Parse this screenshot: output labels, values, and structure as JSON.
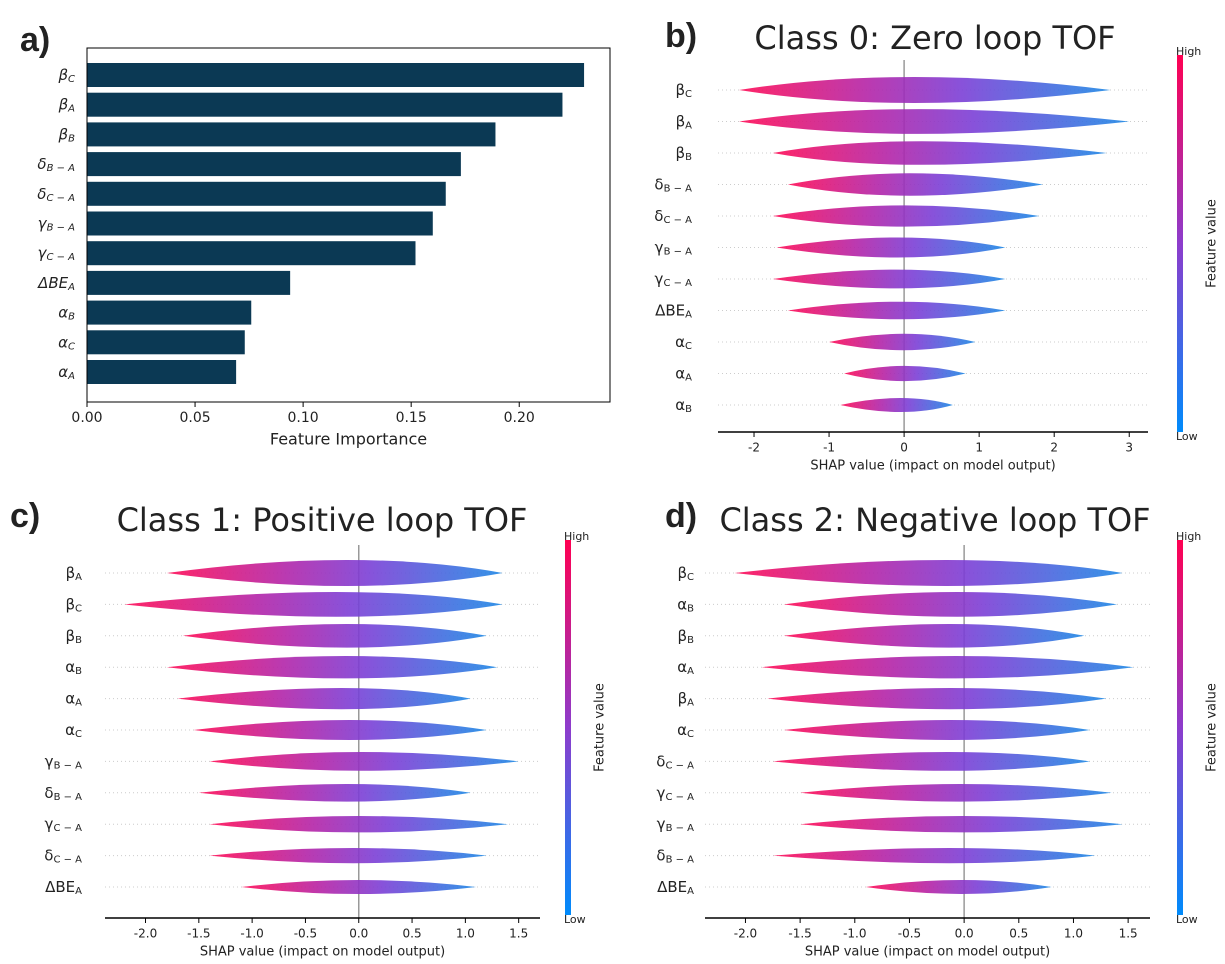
{
  "chart_data": [
    {
      "type": "bar",
      "panel_label": "a)",
      "xlabel": "Feature Importance",
      "color": "#0b3954",
      "categories": [
        {
          "symbol": "β",
          "subscript": "C"
        },
        {
          "symbol": "β",
          "subscript": "A"
        },
        {
          "symbol": "β",
          "subscript": "B"
        },
        {
          "symbol": "δ",
          "subscript": "B − A"
        },
        {
          "symbol": "δ",
          "subscript": "C − A"
        },
        {
          "symbol": "γ",
          "subscript": "B − A"
        },
        {
          "symbol": "γ",
          "subscript": "C − A"
        },
        {
          "symbol": "ΔBE",
          "subscript": "A"
        },
        {
          "symbol": "α",
          "subscript": "B"
        },
        {
          "symbol": "α",
          "subscript": "C"
        },
        {
          "symbol": "α",
          "subscript": "A"
        }
      ],
      "values": [
        0.23,
        0.22,
        0.189,
        0.173,
        0.166,
        0.16,
        0.152,
        0.094,
        0.076,
        0.073,
        0.069
      ],
      "xlim": [
        0,
        0.242
      ],
      "xticks": [
        {
          "value": 0,
          "label": "0.00"
        },
        {
          "value": 0.05,
          "label": "0.05"
        },
        {
          "value": 0.1,
          "label": "0.10"
        },
        {
          "value": 0.15,
          "label": "0.15"
        },
        {
          "value": 0.2,
          "label": "0.20"
        }
      ]
    },
    {
      "type": "beeswarm",
      "panel_label": "b)",
      "title": "Class 0: Zero loop TOF",
      "xlabel": "SHAP value (impact on model output)",
      "colorbar": {
        "label": "Feature value",
        "high": "High",
        "low": "Low"
      },
      "categories": [
        {
          "symbol": "β",
          "subscript": "C"
        },
        {
          "symbol": "β",
          "subscript": "A"
        },
        {
          "symbol": "β",
          "subscript": "B"
        },
        {
          "symbol": "δ",
          "subscript": "B − A"
        },
        {
          "symbol": "δ",
          "subscript": "C − A"
        },
        {
          "symbol": "γ",
          "subscript": "B − A"
        },
        {
          "symbol": "γ",
          "subscript": "C − A"
        },
        {
          "symbol": "ΔBE",
          "subscript": "A"
        },
        {
          "symbol": "α",
          "subscript": "C"
        },
        {
          "symbol": "α",
          "subscript": "A"
        },
        {
          "symbol": "α",
          "subscript": "B"
        }
      ],
      "min_values": [
        -2.2,
        -2.2,
        -1.75,
        -1.55,
        -1.75,
        -1.7,
        -1.75,
        -1.55,
        -1.0,
        -0.8,
        -0.85
      ],
      "max_values": [
        2.75,
        3.0,
        2.7,
        1.85,
        1.8,
        1.35,
        1.35,
        1.35,
        0.95,
        0.82,
        0.65
      ],
      "xlim": [
        -2.48,
        3.25
      ],
      "xticks": [
        -2,
        -1,
        0,
        1,
        2,
        3
      ]
    },
    {
      "type": "beeswarm",
      "panel_label": "c)",
      "title": "Class 1: Positive loop TOF",
      "xlabel": "SHAP value (impact on model output)",
      "colorbar": {
        "label": "Feature value",
        "high": "High",
        "low": "Low"
      },
      "categories": [
        {
          "symbol": "β",
          "subscript": "A"
        },
        {
          "symbol": "β",
          "subscript": "C"
        },
        {
          "symbol": "β",
          "subscript": "B"
        },
        {
          "symbol": "α",
          "subscript": "B"
        },
        {
          "symbol": "α",
          "subscript": "A"
        },
        {
          "symbol": "α",
          "subscript": "C"
        },
        {
          "symbol": "γ",
          "subscript": "B − A"
        },
        {
          "symbol": "δ",
          "subscript": "B − A"
        },
        {
          "symbol": "γ",
          "subscript": "C − A"
        },
        {
          "symbol": "δ",
          "subscript": "C − A"
        },
        {
          "symbol": "ΔBE",
          "subscript": "A"
        }
      ],
      "min_values": [
        -1.8,
        -2.2,
        -1.65,
        -1.8,
        -1.7,
        -1.55,
        -1.4,
        -1.5,
        -1.4,
        -1.4,
        -1.1
      ],
      "max_values": [
        1.35,
        1.35,
        1.2,
        1.3,
        1.05,
        1.2,
        1.5,
        1.05,
        1.4,
        1.2,
        1.1
      ],
      "xlim": [
        -2.38,
        1.7
      ],
      "xticks": [
        {
          "value": -2,
          "label": "-2.0"
        },
        {
          "value": -1.5,
          "label": "-1.5"
        },
        {
          "value": -1,
          "label": "-1.0"
        },
        {
          "value": -0.5,
          "label": "-0.5"
        },
        {
          "value": 0,
          "label": "0.0"
        },
        {
          "value": 0.5,
          "label": "0.5"
        },
        {
          "value": 1,
          "label": "1.0"
        },
        {
          "value": 1.5,
          "label": "1.5"
        }
      ]
    },
    {
      "type": "beeswarm",
      "panel_label": "d)",
      "title": "Class 2: Negative loop TOF",
      "xlabel": "SHAP value (impact on model output)",
      "colorbar": {
        "label": "Feature value",
        "high": "High",
        "low": "Low"
      },
      "categories": [
        {
          "symbol": "β",
          "subscript": "C"
        },
        {
          "symbol": "α",
          "subscript": "B"
        },
        {
          "symbol": "β",
          "subscript": "B"
        },
        {
          "symbol": "α",
          "subscript": "A"
        },
        {
          "symbol": "β",
          "subscript": "A"
        },
        {
          "symbol": "α",
          "subscript": "C"
        },
        {
          "symbol": "δ",
          "subscript": "C − A"
        },
        {
          "symbol": "γ",
          "subscript": "C − A"
        },
        {
          "symbol": "γ",
          "subscript": "B − A"
        },
        {
          "symbol": "δ",
          "subscript": "B − A"
        },
        {
          "symbol": "ΔBE",
          "subscript": "A"
        }
      ],
      "min_values": [
        -2.1,
        -1.65,
        -1.65,
        -1.85,
        -1.8,
        -1.65,
        -1.75,
        -1.5,
        -1.5,
        -1.75,
        -0.9
      ],
      "max_values": [
        1.45,
        1.4,
        1.1,
        1.55,
        1.3,
        1.15,
        1.15,
        1.35,
        1.45,
        1.2,
        0.8
      ],
      "xlim": [
        -2.37,
        1.7
      ],
      "xticks": [
        {
          "value": -2,
          "label": "-2.0"
        },
        {
          "value": -1.5,
          "label": "-1.5"
        },
        {
          "value": -1,
          "label": "-1.0"
        },
        {
          "value": -0.5,
          "label": "-0.5"
        },
        {
          "value": 0,
          "label": "0.0"
        },
        {
          "value": 0.5,
          "label": "0.5"
        },
        {
          "value": 1,
          "label": "1.0"
        },
        {
          "value": 1.5,
          "label": "1.5"
        }
      ]
    }
  ]
}
